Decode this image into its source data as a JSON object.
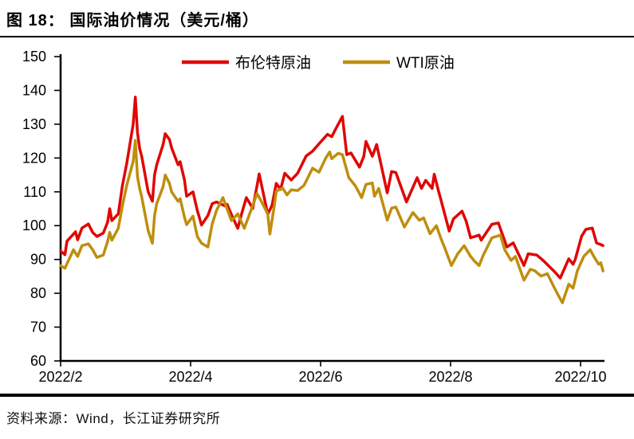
{
  "header": {
    "title": "图 18： 国际油价情况（美元/桶）"
  },
  "footer": {
    "source": "资料来源：Wind，长江证券研究所"
  },
  "colors": {
    "brent": "#e00604",
    "wti": "#bf8e0e",
    "axis": "#000000"
  },
  "chart_data": {
    "type": "line",
    "title": "国际油价情况（美元/桶）",
    "unit": "美元/桶",
    "grid": false,
    "legend": {
      "position": "top-center",
      "entries": [
        "布伦特原油",
        "WTI原油"
      ]
    },
    "x_axis": {
      "tick_labels": [
        "2022/2",
        "2022/4",
        "2022/6",
        "2022/8",
        "2022/10"
      ],
      "range": [
        "2022-02-01",
        "2022-10-13"
      ]
    },
    "y_axis": {
      "min": 60,
      "max": 150,
      "tick_step": 10,
      "ticks": [
        150,
        140,
        130,
        120,
        110,
        100,
        90,
        80,
        70,
        60
      ]
    },
    "series": [
      {
        "id": "brent",
        "name": "布伦特原油",
        "color": "#e00604",
        "points": [
          [
            "2022-02-01",
            92.5
          ],
          [
            "2022-02-03",
            91.4
          ],
          [
            "2022-02-04",
            95.4
          ],
          [
            "2022-02-08",
            98.2
          ],
          [
            "2022-02-09",
            95.8
          ],
          [
            "2022-02-11",
            99.3
          ],
          [
            "2022-02-14",
            100.5
          ],
          [
            "2022-02-16",
            98.0
          ],
          [
            "2022-02-18",
            96.8
          ],
          [
            "2022-02-21",
            97.8
          ],
          [
            "2022-02-23",
            101.0
          ],
          [
            "2022-02-24",
            105.0
          ],
          [
            "2022-02-25",
            101.5
          ],
          [
            "2022-02-28",
            103.5
          ],
          [
            "2022-03-02",
            112.0
          ],
          [
            "2022-03-04",
            118.5
          ],
          [
            "2022-03-07",
            130.0
          ],
          [
            "2022-03-08",
            138.0
          ],
          [
            "2022-03-09",
            127.5
          ],
          [
            "2022-03-10",
            122.8
          ],
          [
            "2022-03-11",
            120.5
          ],
          [
            "2022-03-14",
            110.0
          ],
          [
            "2022-03-16",
            107.2
          ],
          [
            "2022-03-17",
            115.0
          ],
          [
            "2022-03-18",
            118.0
          ],
          [
            "2022-03-21",
            124.0
          ],
          [
            "2022-03-22",
            127.2
          ],
          [
            "2022-03-24",
            125.5
          ],
          [
            "2022-03-25",
            123.0
          ],
          [
            "2022-03-28",
            118.0
          ],
          [
            "2022-03-29",
            118.9
          ],
          [
            "2022-03-31",
            113.5
          ],
          [
            "2022-04-01",
            108.7
          ],
          [
            "2022-04-04",
            110.0
          ],
          [
            "2022-04-06",
            104.5
          ],
          [
            "2022-04-08",
            100.2
          ],
          [
            "2022-04-11",
            103.0
          ],
          [
            "2022-04-13",
            106.5
          ],
          [
            "2022-04-15",
            107.0
          ],
          [
            "2022-04-19",
            105.8
          ],
          [
            "2022-04-20",
            106.3
          ],
          [
            "2022-04-22",
            103.3
          ],
          [
            "2022-04-25",
            99.2
          ],
          [
            "2022-04-27",
            104.0
          ],
          [
            "2022-04-29",
            108.3
          ],
          [
            "2022-05-02",
            105.1
          ],
          [
            "2022-05-05",
            115.3
          ],
          [
            "2022-05-09",
            103.4
          ],
          [
            "2022-05-11",
            106.0
          ],
          [
            "2022-05-13",
            112.5
          ],
          [
            "2022-05-15",
            110.7
          ],
          [
            "2022-05-17",
            115.5
          ],
          [
            "2022-05-20",
            113.5
          ],
          [
            "2022-05-23",
            115.5
          ],
          [
            "2022-05-27",
            120.6
          ],
          [
            "2022-05-30",
            122.0
          ],
          [
            "2022-06-02",
            124.2
          ],
          [
            "2022-06-06",
            127.0
          ],
          [
            "2022-06-08",
            126.3
          ],
          [
            "2022-06-10",
            128.8
          ],
          [
            "2022-06-13",
            132.3
          ],
          [
            "2022-06-15",
            121.0
          ],
          [
            "2022-06-17",
            121.5
          ],
          [
            "2022-06-21",
            117.3
          ],
          [
            "2022-06-23",
            120.5
          ],
          [
            "2022-06-24",
            124.9
          ],
          [
            "2022-06-27",
            120.5
          ],
          [
            "2022-06-29",
            124.0
          ],
          [
            "2022-07-04",
            109.7
          ],
          [
            "2022-07-06",
            116.0
          ],
          [
            "2022-07-08",
            115.7
          ],
          [
            "2022-07-13",
            107.0
          ],
          [
            "2022-07-18",
            114.2
          ],
          [
            "2022-07-20",
            111.0
          ],
          [
            "2022-07-22",
            113.4
          ],
          [
            "2022-07-25",
            111.0
          ],
          [
            "2022-07-26",
            115.2
          ],
          [
            "2022-07-28",
            110.2
          ],
          [
            "2022-07-29",
            107.9
          ],
          [
            "2022-08-02",
            98.4
          ],
          [
            "2022-08-04",
            102.0
          ],
          [
            "2022-08-08",
            104.3
          ],
          [
            "2022-08-10",
            101.2
          ],
          [
            "2022-08-12",
            96.4
          ],
          [
            "2022-08-16",
            97.2
          ],
          [
            "2022-08-17",
            95.7
          ],
          [
            "2022-08-22",
            100.4
          ],
          [
            "2022-08-25",
            100.8
          ],
          [
            "2022-08-29",
            93.7
          ],
          [
            "2022-09-01",
            94.9
          ],
          [
            "2022-09-06",
            88.2
          ],
          [
            "2022-09-08",
            91.7
          ],
          [
            "2022-09-12",
            91.3
          ],
          [
            "2022-09-15",
            89.7
          ],
          [
            "2022-09-20",
            86.6
          ],
          [
            "2022-09-23",
            84.5
          ],
          [
            "2022-09-27",
            90.2
          ],
          [
            "2022-09-29",
            88.6
          ],
          [
            "2022-09-30",
            90.0
          ],
          [
            "2022-10-03",
            96.9
          ],
          [
            "2022-10-05",
            98.9
          ],
          [
            "2022-10-08",
            99.3
          ],
          [
            "2022-10-10",
            94.9
          ],
          [
            "2022-10-12",
            94.4
          ],
          [
            "2022-10-13",
            94.1
          ]
        ]
      },
      {
        "id": "wti",
        "name": "WTI原油",
        "color": "#bf8e0e",
        "points": [
          [
            "2022-02-01",
            88.2
          ],
          [
            "2022-02-03",
            87.4
          ],
          [
            "2022-02-07",
            92.9
          ],
          [
            "2022-02-09",
            90.9
          ],
          [
            "2022-02-11",
            94.1
          ],
          [
            "2022-02-14",
            94.6
          ],
          [
            "2022-02-16",
            92.9
          ],
          [
            "2022-02-18",
            90.6
          ],
          [
            "2022-02-21",
            91.3
          ],
          [
            "2022-02-23",
            95.3
          ],
          [
            "2022-02-24",
            98.0
          ],
          [
            "2022-02-25",
            95.7
          ],
          [
            "2022-02-28",
            99.2
          ],
          [
            "2022-03-02",
            106.0
          ],
          [
            "2022-03-04",
            112.0
          ],
          [
            "2022-03-07",
            119.0
          ],
          [
            "2022-03-08",
            125.2
          ],
          [
            "2022-03-09",
            114.5
          ],
          [
            "2022-03-10",
            111.0
          ],
          [
            "2022-03-11",
            108.5
          ],
          [
            "2022-03-14",
            98.5
          ],
          [
            "2022-03-16",
            94.8
          ],
          [
            "2022-03-17",
            103.0
          ],
          [
            "2022-03-18",
            106.5
          ],
          [
            "2022-03-21",
            111.5
          ],
          [
            "2022-03-22",
            115.0
          ],
          [
            "2022-03-24",
            112.5
          ],
          [
            "2022-03-25",
            110.0
          ],
          [
            "2022-03-28",
            107.2
          ],
          [
            "2022-03-29",
            108.0
          ],
          [
            "2022-03-31",
            102.5
          ],
          [
            "2022-04-01",
            100.3
          ],
          [
            "2022-04-04",
            102.8
          ],
          [
            "2022-04-06",
            96.8
          ],
          [
            "2022-04-08",
            94.8
          ],
          [
            "2022-04-11",
            93.7
          ],
          [
            "2022-04-13",
            100.5
          ],
          [
            "2022-04-15",
            104.5
          ],
          [
            "2022-04-18",
            108.3
          ],
          [
            "2022-04-22",
            101.5
          ],
          [
            "2022-04-25",
            103.5
          ],
          [
            "2022-04-28",
            99.2
          ],
          [
            "2022-05-02",
            106.0
          ],
          [
            "2022-05-04",
            109.5
          ],
          [
            "2022-05-06",
            107.2
          ],
          [
            "2022-05-09",
            103.5
          ],
          [
            "2022-05-10",
            97.5
          ],
          [
            "2022-05-12",
            105.5
          ],
          [
            "2022-05-13",
            110.2
          ],
          [
            "2022-05-16",
            111.1
          ],
          [
            "2022-05-18",
            109.1
          ],
          [
            "2022-05-20",
            110.6
          ],
          [
            "2022-05-23",
            110.4
          ],
          [
            "2022-05-26",
            111.9
          ],
          [
            "2022-05-30",
            117.0
          ],
          [
            "2022-06-02",
            115.8
          ],
          [
            "2022-06-05",
            119.8
          ],
          [
            "2022-06-07",
            121.8
          ],
          [
            "2022-06-08",
            119.8
          ],
          [
            "2022-06-11",
            121.4
          ],
          [
            "2022-06-13",
            121.0
          ],
          [
            "2022-06-16",
            114.2
          ],
          [
            "2022-06-19",
            111.8
          ],
          [
            "2022-06-22",
            108.3
          ],
          [
            "2022-06-24",
            112.2
          ],
          [
            "2022-06-27",
            112.6
          ],
          [
            "2022-06-28",
            108.7
          ],
          [
            "2022-06-30",
            111.0
          ],
          [
            "2022-07-04",
            101.6
          ],
          [
            "2022-07-06",
            105.2
          ],
          [
            "2022-07-08",
            105.5
          ],
          [
            "2022-07-12",
            99.6
          ],
          [
            "2022-07-16",
            103.9
          ],
          [
            "2022-07-19",
            101.6
          ],
          [
            "2022-07-21",
            102.3
          ],
          [
            "2022-07-24",
            97.6
          ],
          [
            "2022-07-27",
            100.0
          ],
          [
            "2022-07-29",
            96.4
          ],
          [
            "2022-07-31",
            93.3
          ],
          [
            "2022-08-03",
            88.2
          ],
          [
            "2022-08-06",
            91.7
          ],
          [
            "2022-08-09",
            94.1
          ],
          [
            "2022-08-12",
            90.9
          ],
          [
            "2022-08-14",
            89.4
          ],
          [
            "2022-08-16",
            88.2
          ],
          [
            "2022-08-18",
            91.3
          ],
          [
            "2022-08-22",
            96.4
          ],
          [
            "2022-08-26",
            97.2
          ],
          [
            "2022-08-28",
            92.9
          ],
          [
            "2022-08-31",
            89.7
          ],
          [
            "2022-09-02",
            90.9
          ],
          [
            "2022-09-06",
            83.9
          ],
          [
            "2022-09-09",
            87.1
          ],
          [
            "2022-09-11",
            86.7
          ],
          [
            "2022-09-14",
            85.1
          ],
          [
            "2022-09-17",
            85.8
          ],
          [
            "2022-09-20",
            81.9
          ],
          [
            "2022-09-22",
            79.5
          ],
          [
            "2022-09-24",
            77.2
          ],
          [
            "2022-09-27",
            82.7
          ],
          [
            "2022-09-29",
            81.5
          ],
          [
            "2022-10-01",
            86.6
          ],
          [
            "2022-10-04",
            90.9
          ],
          [
            "2022-10-07",
            92.9
          ],
          [
            "2022-10-09",
            90.6
          ],
          [
            "2022-10-11",
            88.6
          ],
          [
            "2022-10-12",
            89.0
          ],
          [
            "2022-10-13",
            86.6
          ]
        ]
      }
    ]
  }
}
